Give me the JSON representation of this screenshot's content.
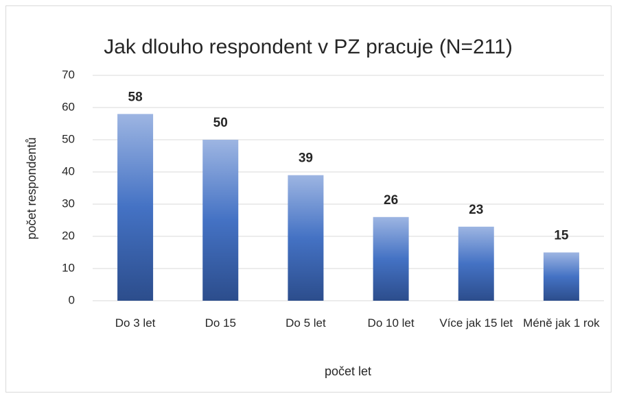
{
  "chart_data": {
    "type": "bar",
    "title": "Jak dlouho respondent v PZ pracuje (N=211)",
    "x_label": "počet let",
    "y_label": "počet  respondentů",
    "categories": [
      "Do 3 let",
      "Do 15",
      "Do 5 let",
      "Do 10 let",
      "Více jak 15 let",
      "Méně jak 1 rok"
    ],
    "values": [
      58,
      50,
      39,
      26,
      23,
      15
    ],
    "color": "#4472c4",
    "ylim": [
      0,
      70
    ],
    "yticks": [
      0,
      10,
      20,
      30,
      40,
      50,
      60,
      70
    ],
    "grid": true
  }
}
